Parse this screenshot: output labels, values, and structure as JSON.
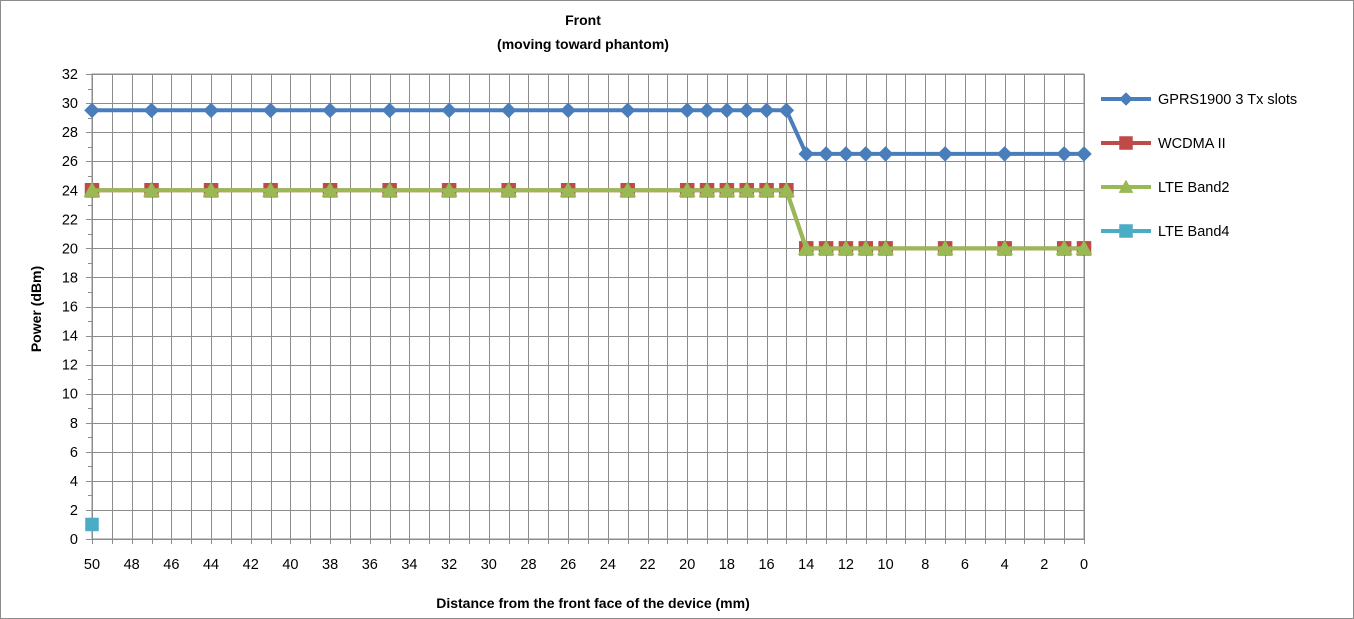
{
  "chart_data": {
    "type": "line",
    "title": "Front",
    "subtitle": "(moving toward phantom)",
    "xlabel": "Distance from the front face of the device (mm)",
    "ylabel": "Power (dBm)",
    "x_reversed": true,
    "xlim": [
      50,
      0
    ],
    "ylim": [
      0,
      32
    ],
    "x_ticks": [
      50,
      48,
      46,
      44,
      42,
      40,
      38,
      36,
      34,
      32,
      30,
      28,
      26,
      24,
      22,
      20,
      18,
      16,
      14,
      12,
      10,
      8,
      6,
      4,
      2,
      0
    ],
    "y_ticks": [
      0,
      2,
      4,
      6,
      8,
      10,
      12,
      14,
      16,
      18,
      20,
      22,
      24,
      26,
      28,
      30,
      32
    ],
    "grid": true,
    "legend_position": "right",
    "series": [
      {
        "name": "GPRS1900  3 Tx slots",
        "color": "#4a7ebb",
        "marker": "diamond",
        "points": [
          [
            50,
            29.5
          ],
          [
            47,
            29.5
          ],
          [
            44,
            29.5
          ],
          [
            41,
            29.5
          ],
          [
            38,
            29.5
          ],
          [
            35,
            29.5
          ],
          [
            32,
            29.5
          ],
          [
            29,
            29.5
          ],
          [
            26,
            29.5
          ],
          [
            23,
            29.5
          ],
          [
            20,
            29.5
          ],
          [
            19,
            29.5
          ],
          [
            18,
            29.5
          ],
          [
            17,
            29.5
          ],
          [
            16,
            29.5
          ],
          [
            15,
            29.5
          ],
          [
            14,
            26.5
          ],
          [
            13,
            26.5
          ],
          [
            12,
            26.5
          ],
          [
            11,
            26.5
          ],
          [
            10,
            26.5
          ],
          [
            7,
            26.5
          ],
          [
            4,
            26.5
          ],
          [
            1,
            26.5
          ],
          [
            0,
            26.5
          ]
        ]
      },
      {
        "name": "WCDMA II",
        "color": "#be4b48",
        "marker": "square",
        "points": [
          [
            50,
            24
          ],
          [
            47,
            24
          ],
          [
            44,
            24
          ],
          [
            41,
            24
          ],
          [
            38,
            24
          ],
          [
            35,
            24
          ],
          [
            32,
            24
          ],
          [
            29,
            24
          ],
          [
            26,
            24
          ],
          [
            23,
            24
          ],
          [
            20,
            24
          ],
          [
            19,
            24
          ],
          [
            18,
            24
          ],
          [
            17,
            24
          ],
          [
            16,
            24
          ],
          [
            15,
            24
          ],
          [
            14,
            20
          ],
          [
            13,
            20
          ],
          [
            12,
            20
          ],
          [
            11,
            20
          ],
          [
            10,
            20
          ],
          [
            7,
            20
          ],
          [
            4,
            20
          ],
          [
            1,
            20
          ],
          [
            0,
            20
          ]
        ]
      },
      {
        "name": "LTE Band2",
        "color": "#98b954",
        "marker": "triangle",
        "points": [
          [
            50,
            24
          ],
          [
            47,
            24
          ],
          [
            44,
            24
          ],
          [
            41,
            24
          ],
          [
            38,
            24
          ],
          [
            35,
            24
          ],
          [
            32,
            24
          ],
          [
            29,
            24
          ],
          [
            26,
            24
          ],
          [
            23,
            24
          ],
          [
            20,
            24
          ],
          [
            19,
            24
          ],
          [
            18,
            24
          ],
          [
            17,
            24
          ],
          [
            16,
            24
          ],
          [
            15,
            24
          ],
          [
            14,
            20
          ],
          [
            13,
            20
          ],
          [
            12,
            20
          ],
          [
            11,
            20
          ],
          [
            10,
            20
          ],
          [
            7,
            20
          ],
          [
            4,
            20
          ],
          [
            1,
            20
          ],
          [
            0,
            20
          ]
        ]
      },
      {
        "name": "LTE Band4",
        "color": "#4bacc6",
        "marker": "square",
        "points": [
          [
            50,
            1
          ]
        ]
      }
    ]
  }
}
